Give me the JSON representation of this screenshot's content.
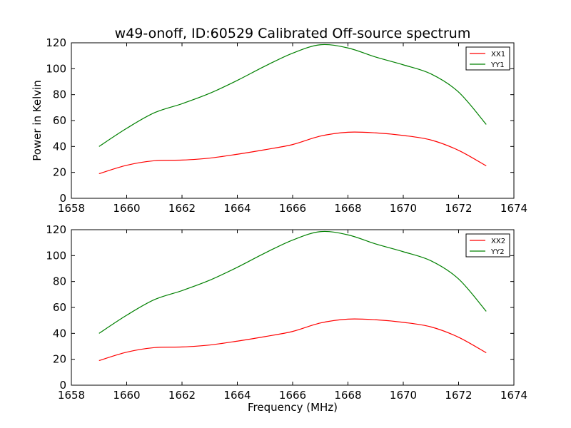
{
  "figure": {
    "title": "w49-onoff, ID:60529 Calibrated Off-source spectrum",
    "background": "#ffffff"
  },
  "chart_data": [
    {
      "type": "line",
      "xlabel": "",
      "ylabel": "Power in Kelvin",
      "xlim": [
        1658,
        1674
      ],
      "ylim": [
        0,
        120
      ],
      "xticks": [
        "1658",
        "1660",
        "1662",
        "1664",
        "1666",
        "1668",
        "1670",
        "1672",
        "1674"
      ],
      "yticks": [
        "0",
        "20",
        "40",
        "60",
        "80",
        "100",
        "120"
      ],
      "legend_position": "top-right",
      "grid": false,
      "series": [
        {
          "name": "XX1",
          "color": "#ff0000",
          "x": [
            1659,
            1660,
            1661,
            1662,
            1663,
            1664,
            1665,
            1666,
            1667,
            1668,
            1669,
            1670,
            1671,
            1672,
            1673
          ],
          "y": [
            19,
            25.5,
            29,
            29.5,
            31,
            34,
            37.5,
            41.5,
            48,
            51,
            50.5,
            48.5,
            45,
            37,
            25
          ]
        },
        {
          "name": "YY1",
          "color": "#008000",
          "x": [
            1659,
            1660,
            1661,
            1662,
            1663,
            1664,
            1665,
            1666,
            1667,
            1668,
            1669,
            1670,
            1671,
            1672,
            1673
          ],
          "y": [
            40,
            54,
            66,
            73,
            81,
            91,
            102,
            112,
            118.5,
            116,
            109,
            103,
            96,
            82,
            57
          ]
        }
      ]
    },
    {
      "type": "line",
      "xlabel": "Frequency (MHz)",
      "ylabel": "",
      "xlim": [
        1658,
        1674
      ],
      "ylim": [
        0,
        120
      ],
      "xticks": [
        "1658",
        "1660",
        "1662",
        "1664",
        "1666",
        "1668",
        "1670",
        "1672",
        "1674"
      ],
      "yticks": [
        "0",
        "20",
        "40",
        "60",
        "80",
        "100",
        "120"
      ],
      "legend_position": "top-right",
      "grid": false,
      "series": [
        {
          "name": "XX2",
          "color": "#ff0000",
          "x": [
            1659,
            1660,
            1661,
            1662,
            1663,
            1664,
            1665,
            1666,
            1667,
            1668,
            1669,
            1670,
            1671,
            1672,
            1673
          ],
          "y": [
            19,
            25.5,
            29,
            29.5,
            31,
            34,
            37.5,
            41.5,
            48,
            51,
            50.5,
            48.5,
            45,
            37,
            25
          ]
        },
        {
          "name": "YY2",
          "color": "#008000",
          "x": [
            1659,
            1660,
            1661,
            1662,
            1663,
            1664,
            1665,
            1666,
            1667,
            1668,
            1669,
            1670,
            1671,
            1672,
            1673
          ],
          "y": [
            40,
            54,
            66,
            73,
            81,
            91,
            102,
            112,
            118.5,
            116,
            109,
            103,
            96,
            82,
            57
          ]
        }
      ]
    }
  ]
}
